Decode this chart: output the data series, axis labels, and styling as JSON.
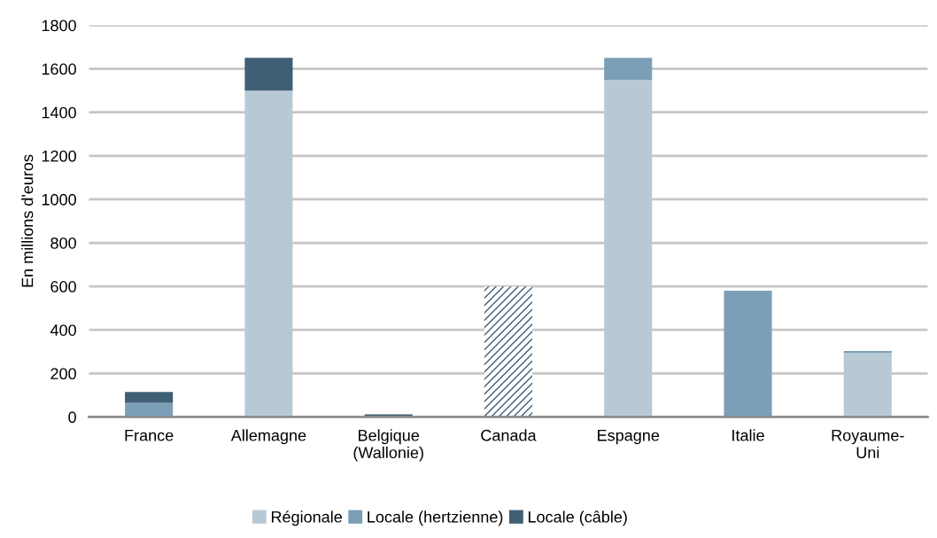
{
  "chart_data": {
    "type": "bar",
    "stacked": true,
    "ylabel": "En millions d'euros",
    "categories": [
      "France",
      "Allemagne",
      "Belgique\n(Wallonie)",
      "Canada",
      "Espagne",
      "Italie",
      "Royaume-\nUni"
    ],
    "series": [
      {
        "name": "Régionale",
        "color": "#b8c9d6",
        "values": [
          0,
          1500,
          0,
          0,
          1550,
          0,
          295
        ]
      },
      {
        "name": "Locale (hertzienne)",
        "color": "#7b9fb7",
        "values": [
          65,
          0,
          0,
          0,
          100,
          580,
          8
        ]
      },
      {
        "name": "Locale (câble)",
        "color": "#3f5f74",
        "values": [
          50,
          150,
          12,
          0,
          0,
          0,
          0
        ]
      },
      {
        "color": "#3f5f74",
        "values": [
          0,
          0,
          0,
          600,
          0,
          0,
          0
        ]
      }
    ],
    "ylim": [
      0,
      1800
    ],
    "yticks": [
      0,
      200,
      400,
      600,
      800,
      1000,
      1200,
      1400,
      1600,
      1800
    ],
    "grid": "y",
    "legend": "bottom"
  }
}
